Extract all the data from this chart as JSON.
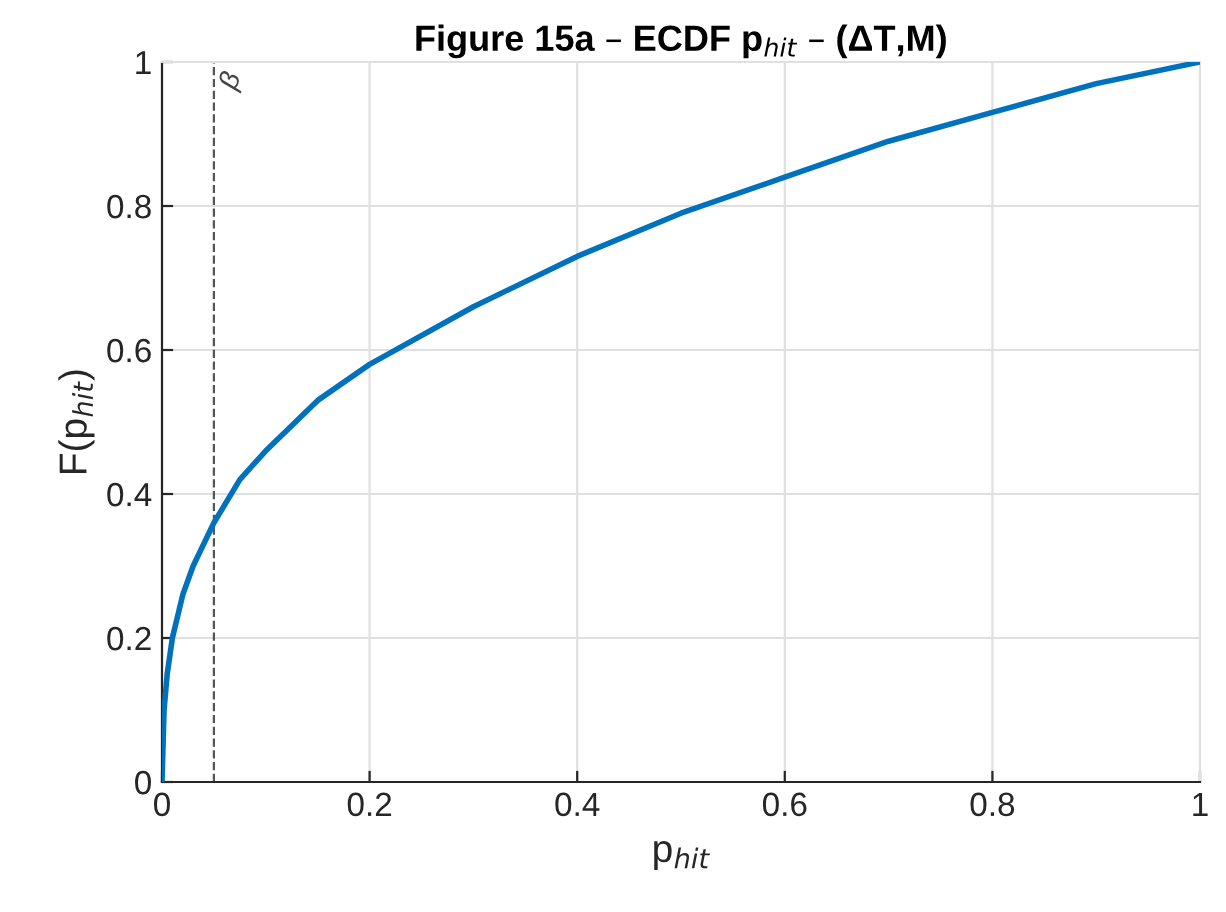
{
  "chart_data": {
    "type": "line",
    "title": "Figure 15a – ECDF p$_{hit}$ – (ΔT,M)",
    "xlabel": "p$_{hit}$",
    "ylabel": "F(p$_{hit}$)",
    "series": [
      {
        "color": "#0072bd",
        "x": [
          0,
          0.002,
          0.005,
          0.01,
          0.02,
          0.03,
          0.05,
          0.075,
          0.1,
          0.15,
          0.2,
          0.3,
          0.4,
          0.5,
          0.6,
          0.7,
          0.8,
          0.9,
          1.0
        ],
        "values": [
          0,
          0.1,
          0.15,
          0.2,
          0.26,
          0.3,
          0.36,
          0.42,
          0.46,
          0.53,
          0.58,
          0.66,
          0.73,
          0.79,
          0.84,
          0.89,
          0.93,
          0.97,
          1.0
        ]
      }
    ],
    "xlim": [
      0,
      1
    ],
    "ylim": [
      0,
      1
    ],
    "xticks": [
      0,
      0.2,
      0.4,
      0.6,
      0.8,
      1
    ],
    "yticks": [
      0,
      0.2,
      0.4,
      0.6,
      0.8,
      1
    ],
    "ref_lines": [
      {
        "axis": "x",
        "value": 0.05,
        "label": "β",
        "color": "#555555",
        "line_style": "dashed"
      }
    ],
    "grid": true,
    "marker": "none",
    "line_style": "solid"
  }
}
